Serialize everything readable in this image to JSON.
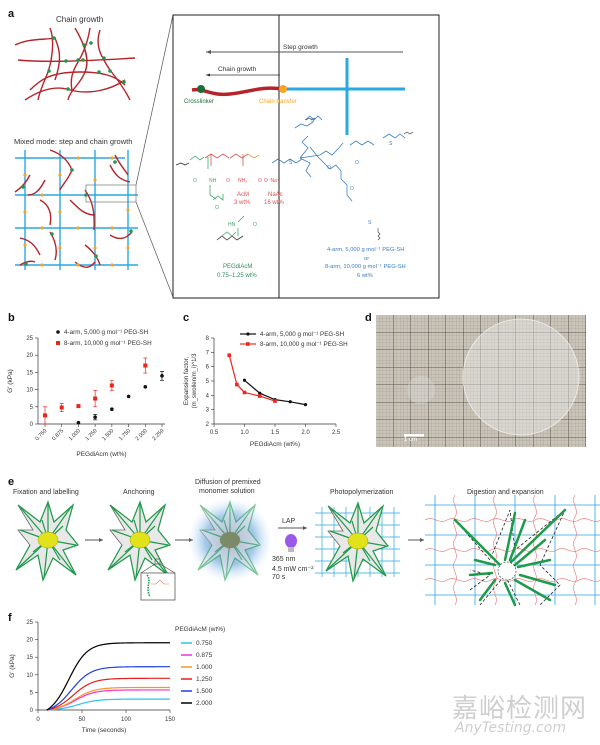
{
  "panel_a": {
    "label": "a",
    "chain_growth_title": "Chain growth",
    "mixed_mode_title": "Mixed mode: step and chain growth",
    "inset": {
      "step_growth": "Step growth",
      "chain_growth": "Chain growth",
      "crosslinker": "Crosslinker",
      "chain_transfer": "Chain transfer",
      "acm_name": "AcM",
      "acm_wt": "3 wt%",
      "naac_name": "NaAc",
      "naac_wt": "16 wt%",
      "pegdiacm_name": "PEGdiAcM",
      "pegdiacm_wt": "0.75–1.25 wt%",
      "peg_line1": "4-arm, 5,000 g mol⁻¹ PEG-SH",
      "peg_line2": "or",
      "peg_line3": "8-arm, 10,000 g mol⁻¹ PEG-SH",
      "peg_line4": "6 wt%",
      "chem_labels": {
        "o1": "O",
        "nh": "NH",
        "o2": "O",
        "nh2": "NH₂",
        "o3": "O",
        "ona": "O⁻Na⁺",
        "s1": "S",
        "hn": "HN",
        "o4": "O",
        "o5": "O",
        "s2": "S",
        "s3": "S",
        "s4": "S",
        "o6": "O",
        "o7": "O",
        "o8": "O"
      }
    },
    "colors": {
      "chain": "#b5242b",
      "step": "#2aa8e0",
      "crosslinker": "#1f9a4a",
      "transfer": "#f5a623",
      "green_text": "#2e8b57",
      "red_text": "#e05050",
      "blue_text": "#3a7fc1"
    }
  },
  "panel_d": {
    "label": "d",
    "scale_bar": "1 cm"
  },
  "panel_e": {
    "label": "e",
    "steps": [
      "Fixation and labelling",
      "Anchoring",
      "Diffusion of premixed",
      "monomer solution",
      "Photopolymerization",
      "Digestion and expansion"
    ],
    "lap": "LAP",
    "cond1": "365 nm",
    "cond2": "4.5 mW cm⁻²",
    "cond3": "70 s",
    "inset_nh": "N",
    "inset_o": "O"
  },
  "chart_data": [
    {
      "id": "b",
      "label": "b",
      "type": "scatter",
      "xlabel": "PEGdiAcm (wt%)",
      "ylabel": "G' (kPa)",
      "categories": [
        "0.750",
        "0.875",
        "1.000",
        "1.250",
        "1.500",
        "1.750",
        "2.000",
        "2.250"
      ],
      "ylim": [
        0,
        25
      ],
      "yticks": [
        0,
        5,
        10,
        15,
        20,
        25
      ],
      "legend_position": "top-left",
      "series": [
        {
          "name": "4-arm, 5,000 g mol⁻¹ PEG-SH",
          "color": "#111111",
          "marker": "circle",
          "points": [
            {
              "x": "1.000",
              "y": 0.4,
              "err": 0
            },
            {
              "x": "1.250",
              "y": 2.0,
              "err": 0.8
            },
            {
              "x": "1.500",
              "y": 4.3,
              "err": 0
            },
            {
              "x": "1.750",
              "y": 8.0,
              "err": 0
            },
            {
              "x": "2.000",
              "y": 10.8,
              "err": 0
            },
            {
              "x": "2.250",
              "y": 14.0,
              "err": 1.3
            }
          ]
        },
        {
          "name": "8-arm, 10,000 g mol⁻¹ PEG-SH",
          "color": "#e8281e",
          "marker": "square",
          "points": [
            {
              "x": "0.750",
              "y": 2.5,
              "err": 2.5
            },
            {
              "x": "0.875",
              "y": 4.8,
              "err": 1.2
            },
            {
              "x": "1.000",
              "y": 5.2,
              "err": 0
            },
            {
              "x": "1.250",
              "y": 7.4,
              "err": 2.4
            },
            {
              "x": "1.500",
              "y": 11.2,
              "err": 1.4
            },
            {
              "x": "2.000",
              "y": 17.0,
              "err": 2.2
            }
          ]
        }
      ]
    },
    {
      "id": "c",
      "label": "c",
      "type": "line",
      "xlabel": "PEGdiAcm (wt%)",
      "ylabel_line1": "Expansion factor,",
      "ylabel_line2": "(m_swollen/m_i)^1/3",
      "xlim": [
        0.5,
        2.5
      ],
      "ylim": [
        2,
        8
      ],
      "xticks": [
        0.5,
        1.0,
        1.5,
        2.0,
        2.5
      ],
      "xtick_labels": [
        "0.5",
        "1.0",
        "1.5",
        "2.0",
        "2.5"
      ],
      "yticks": [
        2,
        3,
        4,
        5,
        6,
        7,
        8
      ],
      "legend_position": "top-right",
      "series": [
        {
          "name": "4-arm, 5,000 g mol⁻¹ PEG-SH",
          "color": "#111111",
          "x": [
            1.0,
            1.25,
            1.5,
            1.75,
            2.0
          ],
          "y": [
            5.05,
            4.15,
            3.7,
            3.55,
            3.35
          ]
        },
        {
          "name": "8-arm, 10,000 g mol⁻¹ PEG-SH",
          "color": "#e8281e",
          "x": [
            0.75,
            0.875,
            1.0,
            1.25,
            1.5
          ],
          "y": [
            6.8,
            4.75,
            4.2,
            3.95,
            3.6
          ]
        }
      ]
    },
    {
      "id": "f",
      "label": "f",
      "type": "line",
      "xlabel": "Time (seconds)",
      "ylabel": "G' (kPa)",
      "xlim": [
        0,
        150
      ],
      "ylim": [
        0,
        25
      ],
      "xticks": [
        0,
        50,
        100,
        150
      ],
      "yticks": [
        0,
        5,
        10,
        15,
        20,
        25
      ],
      "legend_title": "PEGdiAcM (wt%)",
      "legend_position": "right",
      "series": [
        {
          "name": "0.750",
          "color": "#29c4ee",
          "plateau": 3.1,
          "t_half": 45,
          "rate": 0.09
        },
        {
          "name": "0.875",
          "color": "#ee33dd",
          "plateau": 5.7,
          "t_half": 42,
          "rate": 0.09
        },
        {
          "name": "1.000",
          "color": "#f59a1b",
          "plateau": 6.4,
          "t_half": 42,
          "rate": 0.09
        },
        {
          "name": "1.250",
          "color": "#e61e1e",
          "plateau": 9.0,
          "t_half": 40,
          "rate": 0.09
        },
        {
          "name": "1.500",
          "color": "#1e3de6",
          "plateau": 12.3,
          "t_half": 38,
          "rate": 0.09
        },
        {
          "name": "2.000",
          "color": "#000000",
          "plateau": 19.1,
          "t_half": 35,
          "rate": 0.095
        }
      ]
    }
  ],
  "watermark": {
    "line1": "嘉峪检测网",
    "line2": "AnyTesting.com"
  }
}
